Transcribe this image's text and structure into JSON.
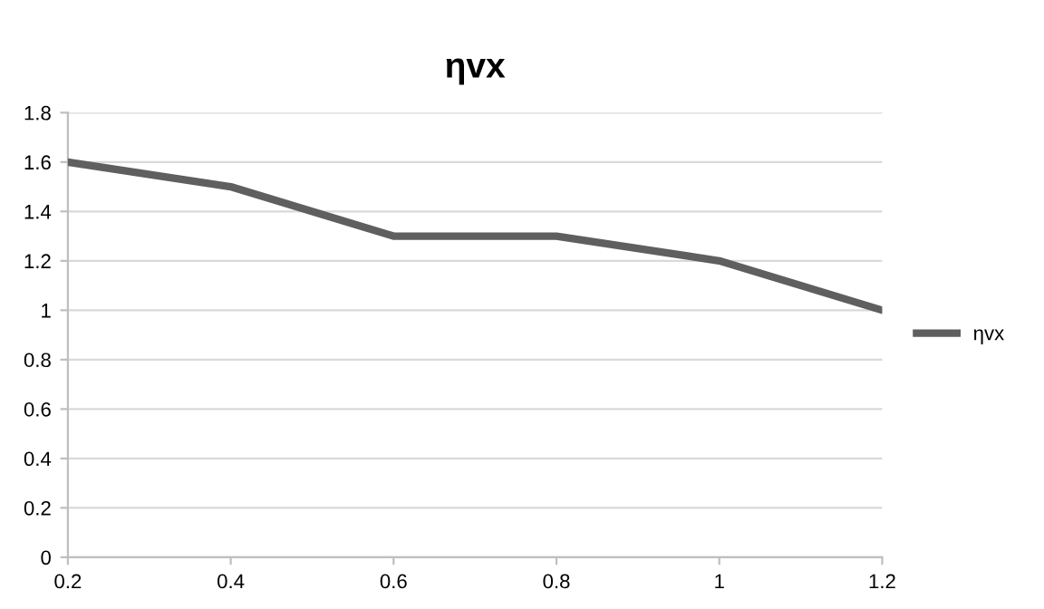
{
  "chart_data": {
    "type": "line",
    "title": "ηvx",
    "categories": [
      "0.2",
      "0.4",
      "0.6",
      "0.8",
      "1",
      "1.2"
    ],
    "series": [
      {
        "name": "ηvx",
        "color": "#5f5f5f",
        "values": [
          1.6,
          1.5,
          1.3,
          1.3,
          1.2,
          1.0
        ]
      }
    ],
    "ylim": [
      0,
      1.8
    ],
    "yticks": [
      0,
      0.2,
      0.4,
      0.6,
      0.8,
      1,
      1.2,
      1.4,
      1.6,
      1.8
    ],
    "grid": "y",
    "legend": "right",
    "marker": "none",
    "line_style": "solid"
  }
}
